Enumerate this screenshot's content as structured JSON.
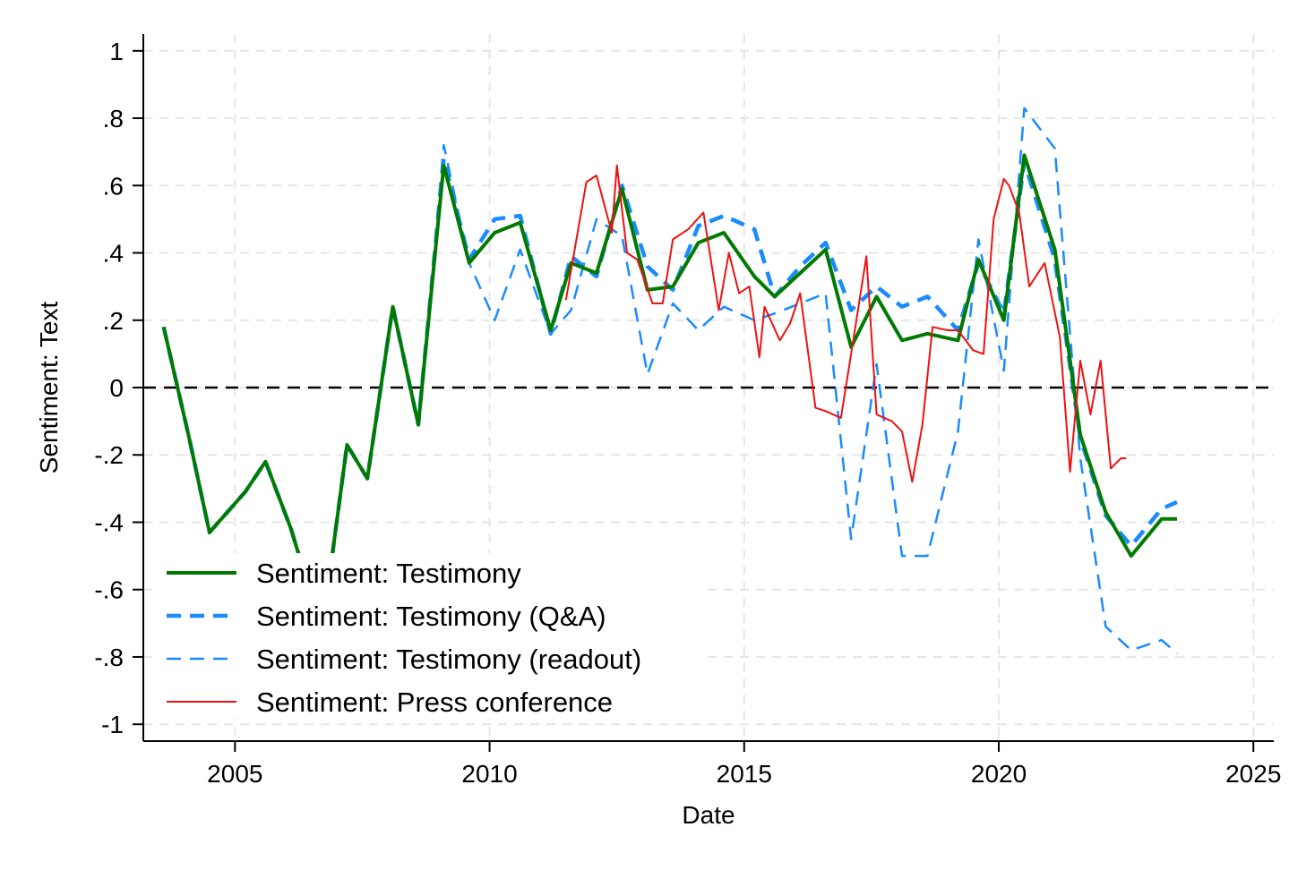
{
  "chart_data": {
    "type": "line",
    "xlabel": "Date",
    "ylabel": "Sentiment: Text",
    "xlim": [
      2003.2,
      2025.4
    ],
    "ylim": [
      -1.05,
      1.05
    ],
    "xticks": [
      2005,
      2010,
      2015,
      2020,
      2025
    ],
    "yticks": [
      1,
      0.8,
      0.6,
      0.4,
      0.2,
      0,
      -0.2,
      -0.4,
      -0.6,
      -0.8,
      -1
    ],
    "ytick_labels": [
      "1",
      ".8",
      ".6",
      ".4",
      ".2",
      "0",
      "-.2",
      "-.4",
      "-.6",
      "-.8",
      "-1"
    ],
    "grid": true,
    "reference_line": {
      "y": 0,
      "style": "dashed",
      "color": "#000000"
    },
    "legend_position": "bottom-left",
    "series": [
      {
        "name": "Sentiment:  Testimony",
        "color": "#007a00",
        "style": "solid",
        "x": [
          2003.6,
          2004.1,
          2004.5,
          2005.2,
          2005.6,
          2006.1,
          2006.5,
          2006.9,
          2007.2,
          2007.6,
          2008.1,
          2008.6,
          2009.1,
          2009.6,
          2010.1,
          2010.6,
          2011.2,
          2011.6,
          2012.1,
          2012.6,
          2013.1,
          2013.6,
          2014.1,
          2014.6,
          2015.2,
          2015.6,
          2016.1,
          2016.6,
          2017.1,
          2017.6,
          2018.1,
          2018.6,
          2019.2,
          2019.6,
          2020.1,
          2020.5,
          2021.1,
          2021.6,
          2022.1,
          2022.6,
          2023.2,
          2023.5
        ],
        "y": [
          0.18,
          -0.15,
          -0.43,
          -0.31,
          -0.22,
          -0.42,
          -0.62,
          -0.51,
          -0.17,
          -0.27,
          0.24,
          -0.11,
          0.66,
          0.37,
          0.46,
          0.49,
          0.17,
          0.37,
          0.34,
          0.59,
          0.29,
          0.3,
          0.43,
          0.46,
          0.33,
          0.27,
          0.34,
          0.41,
          0.12,
          0.27,
          0.14,
          0.16,
          0.14,
          0.38,
          0.2,
          0.69,
          0.41,
          -0.14,
          -0.37,
          -0.5,
          -0.39,
          -0.39
        ]
      },
      {
        "name": "Sentiment:  Testimony (Q&A)",
        "color": "#1a8bff",
        "style": "dashed-thick",
        "x": [
          2003.6,
          2004.1,
          2004.5,
          2005.2,
          2005.6,
          2006.1,
          2006.5,
          2006.9,
          2007.2,
          2007.6,
          2008.1,
          2008.6,
          2009.1,
          2009.6,
          2010.1,
          2010.6,
          2011.2,
          2011.6,
          2012.1,
          2012.6,
          2013.1,
          2013.6,
          2014.1,
          2014.6,
          2015.2,
          2015.6,
          2016.1,
          2016.6,
          2017.1,
          2017.6,
          2018.1,
          2018.6,
          2019.2,
          2019.6,
          2020.1,
          2020.5,
          2021.1,
          2021.6,
          2022.1,
          2022.6,
          2023.2,
          2023.5
        ],
        "y": [
          0.18,
          -0.15,
          -0.43,
          -0.31,
          -0.22,
          -0.42,
          -0.62,
          -0.51,
          -0.17,
          -0.27,
          0.24,
          -0.11,
          0.68,
          0.38,
          0.5,
          0.51,
          0.16,
          0.39,
          0.33,
          0.6,
          0.36,
          0.29,
          0.48,
          0.51,
          0.47,
          0.27,
          0.36,
          0.43,
          0.23,
          0.3,
          0.24,
          0.27,
          0.17,
          0.37,
          0.22,
          0.67,
          0.38,
          -0.15,
          -0.38,
          -0.47,
          -0.36,
          -0.34
        ]
      },
      {
        "name": "Sentiment:  Testimony (readout)",
        "color": "#1a8bff",
        "style": "dashed-thin",
        "x": [
          2003.6,
          2004.1,
          2004.5,
          2005.2,
          2005.6,
          2006.1,
          2006.5,
          2006.9,
          2007.2,
          2007.6,
          2008.1,
          2008.6,
          2009.1,
          2009.6,
          2010.1,
          2010.6,
          2011.2,
          2011.6,
          2012.1,
          2012.6,
          2013.1,
          2013.6,
          2014.1,
          2014.6,
          2015.2,
          2015.6,
          2016.1,
          2016.6,
          2017.1,
          2017.6,
          2018.1,
          2018.6,
          2019.2,
          2019.6,
          2020.1,
          2020.5,
          2021.1,
          2021.6,
          2022.1,
          2022.6,
          2023.2,
          2023.5
        ],
        "y": [
          0.18,
          -0.15,
          -0.43,
          -0.31,
          -0.22,
          -0.42,
          -0.62,
          -0.51,
          -0.17,
          -0.27,
          0.24,
          -0.11,
          0.72,
          0.37,
          0.2,
          0.41,
          0.16,
          0.23,
          0.5,
          0.45,
          0.04,
          0.25,
          0.17,
          0.24,
          0.2,
          0.22,
          0.25,
          0.28,
          -0.45,
          0.07,
          -0.5,
          -0.5,
          -0.13,
          0.44,
          0.05,
          0.83,
          0.71,
          -0.21,
          -0.71,
          -0.78,
          -0.75,
          -0.79
        ]
      },
      {
        "name": "Sentiment:  Press conference",
        "color": "#ee1111",
        "style": "solid-thin",
        "x": [
          2011.5,
          2011.9,
          2012.1,
          2012.4,
          2012.5,
          2012.7,
          2012.9,
          2013.2,
          2013.4,
          2013.6,
          2013.9,
          2014.2,
          2014.5,
          2014.7,
          2014.9,
          2015.1,
          2015.3,
          2015.4,
          2015.7,
          2015.9,
          2016.1,
          2016.4,
          2016.6,
          2016.9,
          2017.1,
          2017.4,
          2017.6,
          2017.9,
          2018.1,
          2018.3,
          2018.5,
          2018.7,
          2019.0,
          2019.2,
          2019.5,
          2019.7,
          2019.9,
          2020.1,
          2020.2,
          2020.4,
          2020.6,
          2020.9,
          2021.2,
          2021.4,
          2021.6,
          2021.8,
          2022.0,
          2022.2,
          2022.4,
          2022.5
        ],
        "y": [
          0.26,
          0.61,
          0.63,
          0.46,
          0.66,
          0.4,
          0.38,
          0.25,
          0.25,
          0.44,
          0.47,
          0.52,
          0.23,
          0.4,
          0.28,
          0.3,
          0.09,
          0.24,
          0.14,
          0.19,
          0.28,
          -0.06,
          -0.07,
          -0.09,
          0.1,
          0.39,
          -0.08,
          -0.1,
          -0.13,
          -0.28,
          -0.11,
          0.18,
          0.17,
          0.17,
          0.11,
          0.1,
          0.5,
          0.62,
          0.6,
          0.52,
          0.3,
          0.37,
          0.15,
          -0.25,
          0.08,
          -0.08,
          0.08,
          -0.24,
          -0.21,
          -0.21
        ]
      }
    ]
  }
}
